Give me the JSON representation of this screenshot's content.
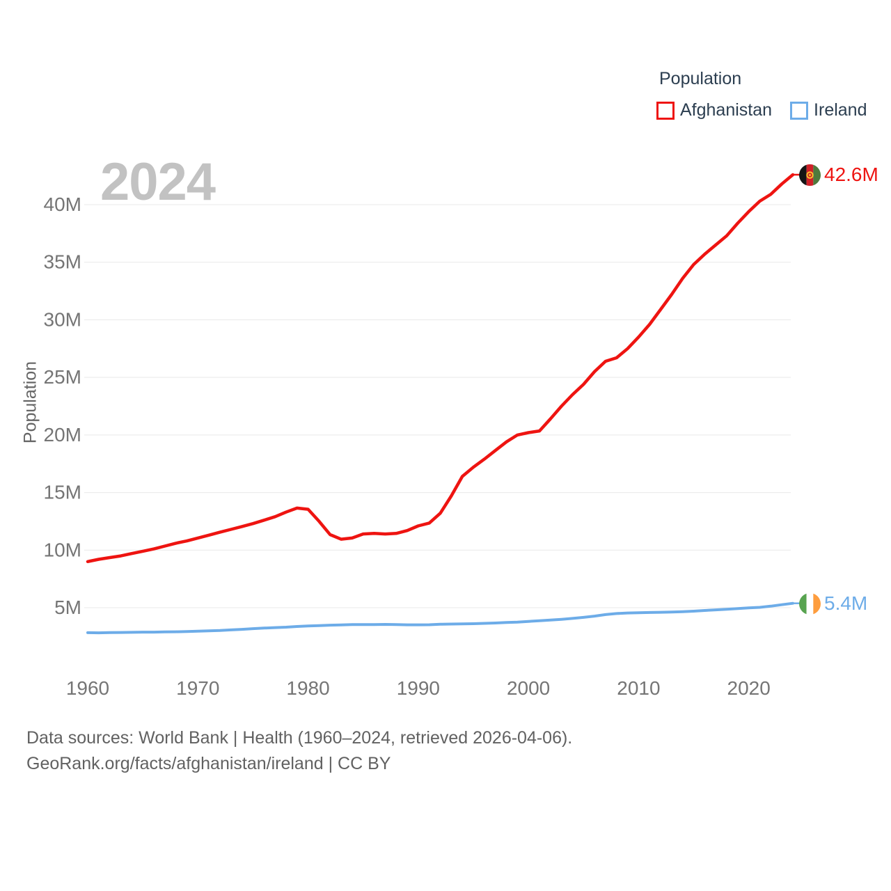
{
  "watermark": "2024",
  "legend": {
    "title": "Population",
    "items": [
      {
        "label": "Afghanistan",
        "color": "#ee1411"
      },
      {
        "label": "Ireland",
        "color": "#6dace8"
      }
    ]
  },
  "chart_data": {
    "type": "line",
    "title": "Population",
    "ylabel": "Population",
    "xlabel": "",
    "grid": "horizontal",
    "legend_position": "top-right",
    "ylim": [
      0,
      44
    ],
    "xlim": [
      1960,
      2024
    ],
    "y_ticks": [
      5,
      10,
      15,
      20,
      25,
      30,
      35,
      40
    ],
    "y_tick_labels": [
      "5M",
      "10M",
      "15M",
      "20M",
      "25M",
      "30M",
      "35M",
      "40M"
    ],
    "x_ticks": [
      1960,
      1970,
      1980,
      1990,
      2000,
      2010,
      2020
    ],
    "x": [
      1960,
      1961,
      1962,
      1963,
      1964,
      1965,
      1966,
      1967,
      1968,
      1969,
      1970,
      1971,
      1972,
      1973,
      1974,
      1975,
      1976,
      1977,
      1978,
      1979,
      1980,
      1981,
      1982,
      1983,
      1984,
      1985,
      1986,
      1987,
      1988,
      1989,
      1990,
      1991,
      1992,
      1993,
      1994,
      1995,
      1996,
      1997,
      1998,
      1999,
      2000,
      2001,
      2002,
      2003,
      2004,
      2005,
      2006,
      2007,
      2008,
      2009,
      2010,
      2011,
      2012,
      2013,
      2014,
      2015,
      2016,
      2017,
      2018,
      2019,
      2020,
      2021,
      2022,
      2023,
      2024
    ],
    "series": [
      {
        "name": "Afghanistan",
        "color": "#ee1411",
        "end_label": "42.6M",
        "values": [
          9.0,
          9.2,
          9.35,
          9.5,
          9.7,
          9.9,
          10.1,
          10.35,
          10.6,
          10.8,
          11.05,
          11.3,
          11.55,
          11.8,
          12.05,
          12.3,
          12.6,
          12.9,
          13.3,
          13.65,
          13.55,
          12.5,
          11.35,
          10.95,
          11.05,
          11.4,
          11.45,
          11.4,
          11.45,
          11.7,
          12.1,
          12.35,
          13.2,
          14.7,
          16.4,
          17.2,
          17.9,
          18.65,
          19.4,
          20.0,
          20.2,
          20.35,
          21.4,
          22.5,
          23.5,
          24.4,
          25.5,
          26.4,
          26.7,
          27.5,
          28.5,
          29.6,
          30.9,
          32.2,
          33.6,
          34.8,
          35.7,
          36.5,
          37.3,
          38.4,
          39.4,
          40.3,
          40.9,
          41.8,
          42.6
        ]
      },
      {
        "name": "Ireland",
        "color": "#6dace8",
        "end_label": "5.4M",
        "values": [
          2.83,
          2.82,
          2.84,
          2.85,
          2.86,
          2.88,
          2.88,
          2.9,
          2.91,
          2.93,
          2.96,
          2.99,
          3.02,
          3.07,
          3.12,
          3.18,
          3.23,
          3.27,
          3.31,
          3.37,
          3.41,
          3.44,
          3.48,
          3.5,
          3.53,
          3.54,
          3.54,
          3.55,
          3.53,
          3.51,
          3.51,
          3.52,
          3.56,
          3.58,
          3.6,
          3.61,
          3.64,
          3.67,
          3.71,
          3.75,
          3.81,
          3.87,
          3.93,
          3.99,
          4.07,
          4.16,
          4.27,
          4.4,
          4.49,
          4.54,
          4.56,
          4.58,
          4.6,
          4.62,
          4.65,
          4.7,
          4.76,
          4.81,
          4.87,
          4.93,
          4.99,
          5.03,
          5.13,
          5.26,
          5.38
        ]
      }
    ]
  },
  "flags": {
    "afghanistan": {
      "bands": [
        "#151515",
        "#cf2028",
        "#4e7a3d"
      ],
      "emblem": "#fec32d"
    },
    "ireland": {
      "bands": [
        "#58a350",
        "#ffffff",
        "#fe9d3e"
      ]
    }
  },
  "footer": {
    "line1": "Data sources: World Bank | Health (1960–2024, retrieved 2026-04-06).",
    "line2": "GeoRank.org/facts/afghanistan/ireland | CC BY"
  }
}
